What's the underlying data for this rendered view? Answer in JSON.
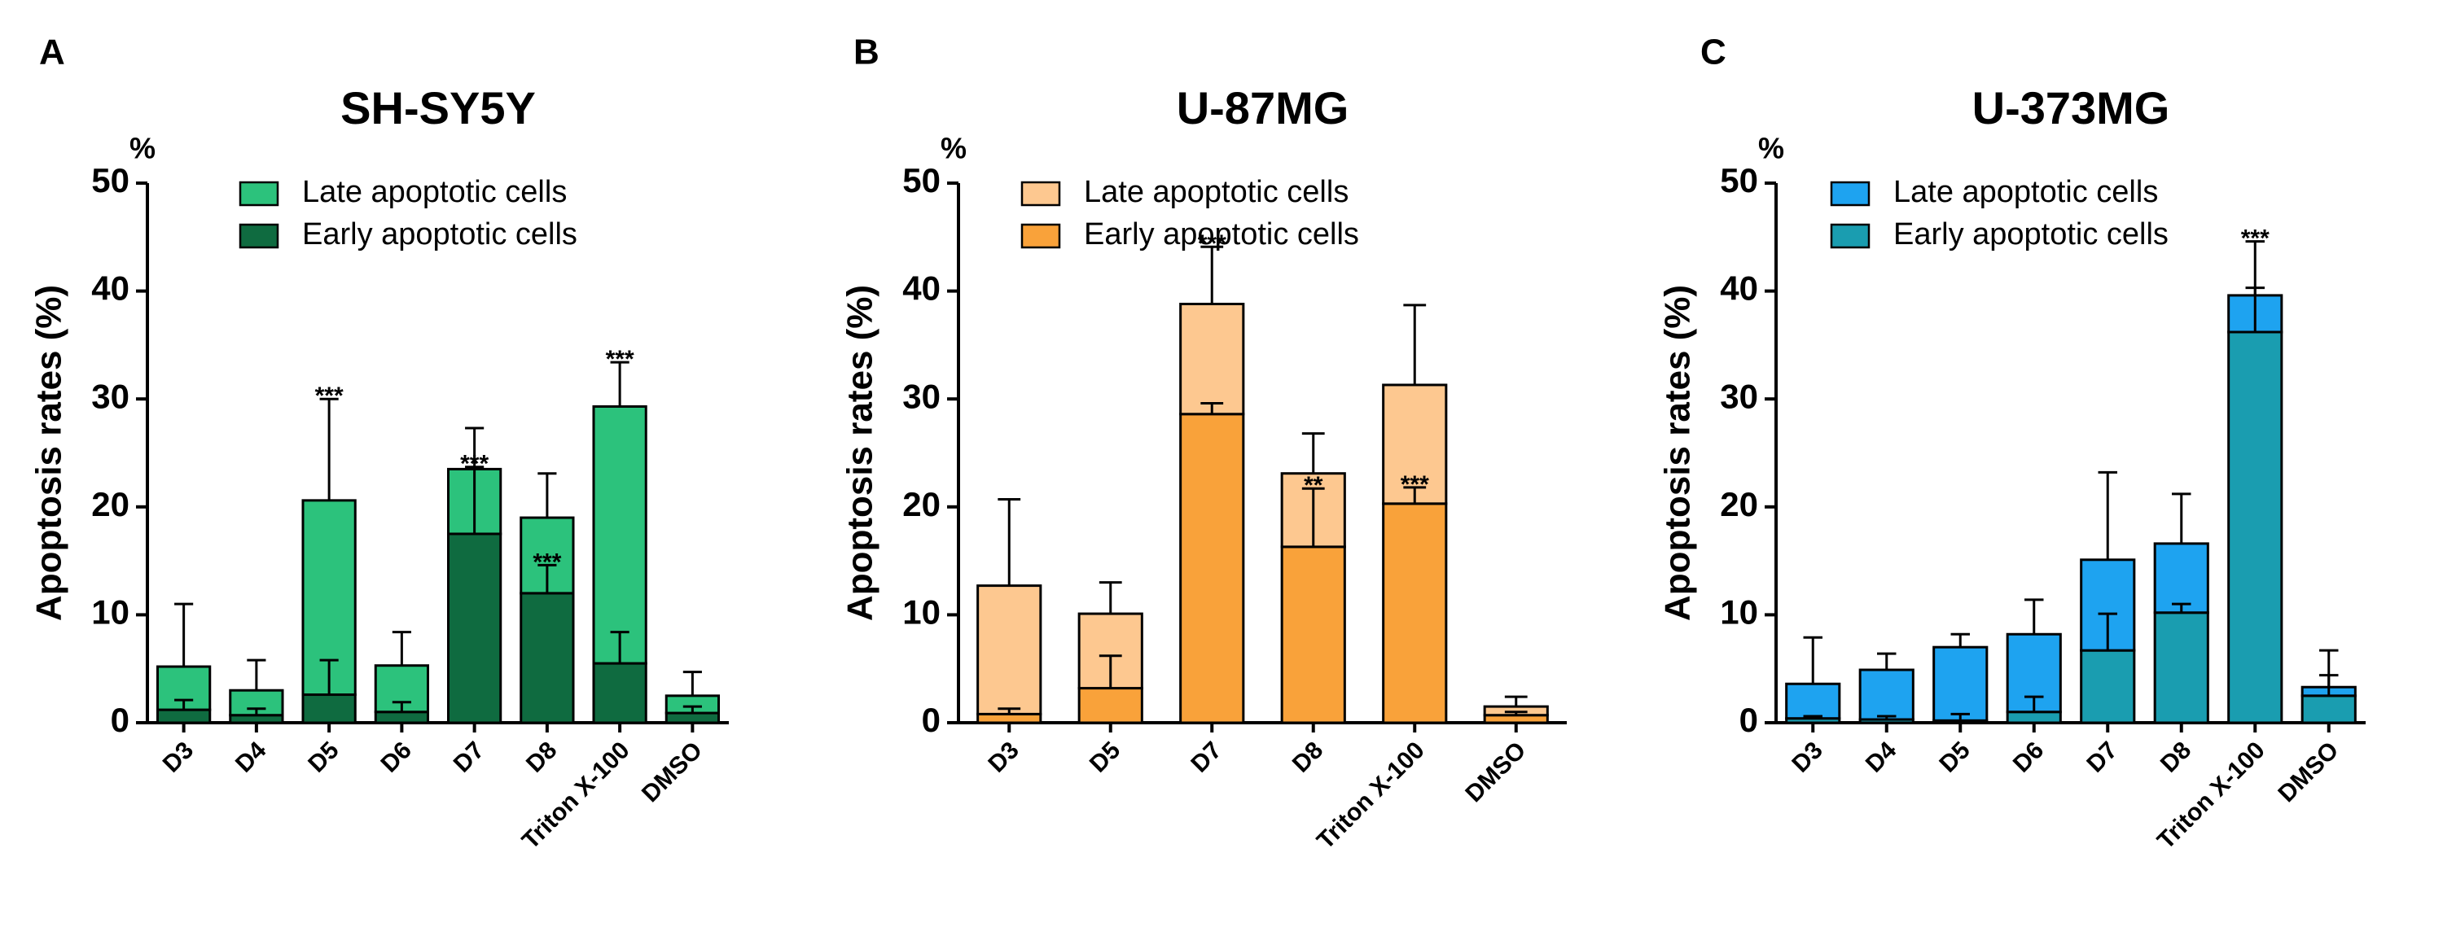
{
  "chart_data": [
    {
      "type": "stacked_bar",
      "panel": "A",
      "title": "SH-SY5Y",
      "y_unit": "%",
      "ylabel": "Apoptosis rates (%)",
      "categories": [
        "D3",
        "D4",
        "D5",
        "D6",
        "D7",
        "D8",
        "Triton X-100",
        "DMSO"
      ],
      "ylim": [
        0,
        50
      ],
      "yticks": [
        0,
        10,
        20,
        30,
        40,
        50
      ],
      "series": [
        {
          "name": "Late apoptotic cells",
          "color": "#2cc27c",
          "values": [
            4.0,
            2.3,
            18.0,
            4.3,
            6.0,
            7.0,
            23.8,
            1.6
          ],
          "errors": [
            5.8,
            2.8,
            9.4,
            3.1,
            3.8,
            4.1,
            4.1,
            2.2
          ],
          "annotations": [
            null,
            null,
            "***",
            null,
            null,
            null,
            "***",
            null
          ]
        },
        {
          "name": "Early apoptotic cells",
          "color": "#0f6b40",
          "values": [
            1.2,
            0.7,
            2.6,
            1.0,
            17.5,
            12.0,
            5.5,
            0.9
          ],
          "errors": [
            0.9,
            0.6,
            3.2,
            0.9,
            6.2,
            2.6,
            2.9,
            0.6
          ],
          "annotations": [
            null,
            null,
            null,
            null,
            "***",
            "***",
            null,
            null
          ]
        }
      ]
    },
    {
      "type": "stacked_bar",
      "panel": "B",
      "title": "U-87MG",
      "y_unit": "%",
      "ylabel": "Apoptosis rates (%)",
      "categories": [
        "D3",
        "D5",
        "D7",
        "D8",
        "Triton X-100",
        "DMSO"
      ],
      "ylim": [
        0,
        50
      ],
      "yticks": [
        0,
        10,
        20,
        30,
        40,
        50
      ],
      "series": [
        {
          "name": "Late apoptotic cells",
          "color": "#fdc890",
          "values": [
            11.9,
            6.9,
            10.2,
            6.8,
            11.0,
            0.8
          ],
          "errors": [
            8.0,
            2.9,
            5.3,
            3.7,
            7.4,
            0.9
          ],
          "annotations": [
            null,
            null,
            "***",
            null,
            null,
            null
          ]
        },
        {
          "name": "Early apoptotic cells",
          "color": "#f9a23a",
          "values": [
            0.8,
            3.2,
            28.6,
            16.3,
            20.3,
            0.7
          ],
          "errors": [
            0.5,
            3.0,
            1.0,
            5.4,
            1.5,
            0.3
          ],
          "annotations": [
            null,
            null,
            null,
            "**",
            "***",
            null
          ]
        }
      ]
    },
    {
      "type": "stacked_bar",
      "panel": "C",
      "title": "U-373MG",
      "y_unit": "%",
      "ylabel": "Apoptosis rates (%)",
      "categories": [
        "D3",
        "D4",
        "D5",
        "D6",
        "D7",
        "D8",
        "Triton X-100",
        "DMSO"
      ],
      "ylim": [
        0,
        50
      ],
      "yticks": [
        0,
        10,
        20,
        30,
        40,
        50
      ],
      "series": [
        {
          "name": "Late apoptotic cells",
          "color": "#1ea3f0",
          "values": [
            3.2,
            4.6,
            6.8,
            7.2,
            8.4,
            6.4,
            3.4,
            0.8
          ],
          "errors": [
            4.3,
            1.5,
            1.2,
            3.2,
            8.1,
            4.6,
            5.0,
            3.4
          ],
          "annotations": [
            null,
            null,
            null,
            null,
            null,
            null,
            "***",
            null
          ]
        },
        {
          "name": "Early apoptotic cells",
          "color": "#1a9db0",
          "values": [
            0.4,
            0.3,
            0.2,
            1.0,
            6.7,
            10.2,
            36.2,
            2.5
          ],
          "errors": [
            0.2,
            0.3,
            0.6,
            1.4,
            3.4,
            0.8,
            4.1,
            1.9
          ],
          "annotations": null
        }
      ]
    }
  ]
}
